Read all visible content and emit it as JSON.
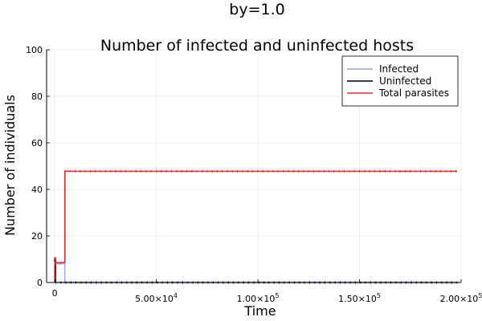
{
  "chart_data": {
    "type": "line",
    "suptitle": "by=1.0",
    "title": "Number of infected and uninfected hosts",
    "xlabel": "Time",
    "ylabel": "Number of individuals",
    "xlim": [
      -4000,
      200000
    ],
    "ylim": [
      0,
      100
    ],
    "grid": true,
    "legend_position": "top-right",
    "x_ticks": [
      {
        "value": 0,
        "base": "0",
        "exp": ""
      },
      {
        "value": 50000,
        "base": "5.00×10",
        "exp": "4"
      },
      {
        "value": 100000,
        "base": "1.00×10",
        "exp": "5"
      },
      {
        "value": 150000,
        "base": "1.50×10",
        "exp": "5"
      },
      {
        "value": 200000,
        "base": "2.00×10",
        "exp": "5"
      }
    ],
    "y_ticks": [
      {
        "value": 0,
        "label": "0"
      },
      {
        "value": 20,
        "label": "20"
      },
      {
        "value": 40,
        "label": "40"
      },
      {
        "value": 60,
        "label": "60"
      },
      {
        "value": 80,
        "label": "80"
      },
      {
        "value": 100,
        "label": "100"
      }
    ],
    "series": [
      {
        "name": "Infected",
        "color": "#8f9bd9",
        "width": 1.2,
        "points": [
          [
            0,
            0
          ],
          [
            0,
            8
          ],
          [
            5000,
            8
          ],
          [
            5000,
            0
          ],
          [
            198000,
            0
          ]
        ]
      },
      {
        "name": "Uninfected",
        "color": "#000000",
        "width": 1.2,
        "points": [
          [
            0,
            0
          ],
          [
            0,
            9.5
          ],
          [
            500,
            9.5
          ],
          [
            500,
            0
          ],
          [
            198000,
            0
          ]
        ]
      },
      {
        "name": "Total parasites",
        "color": "#e8262b",
        "width": 1.6,
        "points": [
          [
            0,
            0
          ],
          [
            0,
            10.5
          ],
          [
            500,
            10.5
          ],
          [
            500,
            8.5
          ],
          [
            5000,
            8.5
          ],
          [
            5000,
            47.8
          ],
          [
            198000,
            47.8
          ]
        ]
      }
    ]
  }
}
